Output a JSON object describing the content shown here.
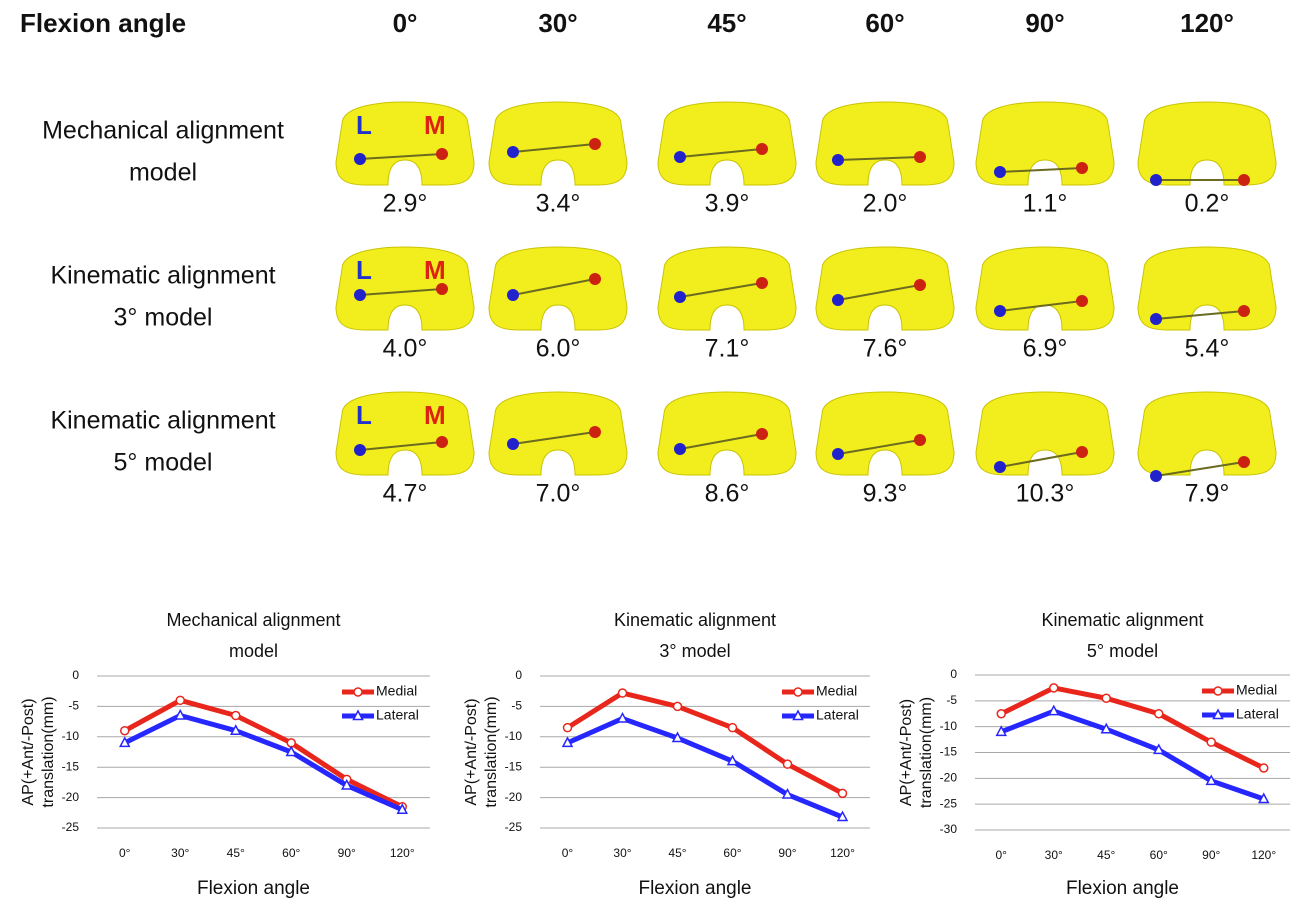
{
  "grid": {
    "header": "Flexion angle",
    "columns": [
      "0°",
      "30°",
      "45°",
      "60°",
      "90°",
      "120°"
    ],
    "lateral_label": "L",
    "medial_label": "M",
    "rows": [
      {
        "label": [
          "Mechanical alignment",
          "model"
        ],
        "values": [
          "2.9°",
          "3.4°",
          "3.9°",
          "2.0°",
          "1.1°",
          "0.2°"
        ]
      },
      {
        "label": [
          "Kinematic alignment",
          "3° model"
        ],
        "values": [
          "4.0°",
          "6.0°",
          "7.1°",
          "7.6°",
          "6.9°",
          "5.4°"
        ]
      },
      {
        "label": [
          "Kinematic alignment",
          "5° model"
        ],
        "values": [
          "4.7°",
          "7.0°",
          "8.6°",
          "9.3°",
          "10.3°",
          "7.9°"
        ]
      }
    ]
  },
  "chart_data": [
    {
      "type": "line",
      "title": [
        "Mechanical alignment",
        "model"
      ],
      "xlabel": "Flexion angle",
      "ylabel": [
        "AP(+Ant/-Post)",
        "translation(mm)"
      ],
      "categories": [
        "0°",
        "30°",
        "45°",
        "60°",
        "90°",
        "120°"
      ],
      "series": [
        {
          "name": "Medial",
          "color": "#e8261b",
          "values": [
            -9,
            -4,
            -6.5,
            -11,
            -17,
            -21.5
          ]
        },
        {
          "name": "Lateral",
          "color": "#2626ff",
          "values": [
            -11,
            -6.5,
            -9,
            -12.5,
            -18,
            -22
          ]
        }
      ],
      "ylim": [
        -25,
        0
      ],
      "yticks": [
        0,
        -5,
        -10,
        -15,
        -20,
        -25
      ],
      "grid": true,
      "legend": "top-right"
    },
    {
      "type": "line",
      "title": [
        "Kinematic alignment",
        "3° model"
      ],
      "xlabel": "Flexion angle",
      "ylabel": [
        "AP(+Ant/-Post)",
        "translation(mm)"
      ],
      "categories": [
        "0°",
        "30°",
        "45°",
        "60°",
        "90°",
        "120°"
      ],
      "series": [
        {
          "name": "Medial",
          "color": "#e8261b",
          "values": [
            -8.5,
            -2.8,
            -5,
            -8.5,
            -14.5,
            -19.3
          ]
        },
        {
          "name": "Lateral",
          "color": "#2626ff",
          "values": [
            -11,
            -7,
            -10.2,
            -14,
            -19.5,
            -23.2
          ]
        }
      ],
      "ylim": [
        -25,
        0
      ],
      "yticks": [
        0,
        -5,
        -10,
        -15,
        -20,
        -25
      ],
      "grid": true,
      "legend": "top-right"
    },
    {
      "type": "line",
      "title": [
        "Kinematic alignment",
        "5° model"
      ],
      "xlabel": "Flexion angle",
      "ylabel": [
        "AP(+Ant/-Post)",
        "translation(mm)"
      ],
      "categories": [
        "0°",
        "30°",
        "45°",
        "60°",
        "90°",
        "120°"
      ],
      "series": [
        {
          "name": "Medial",
          "color": "#e8261b",
          "values": [
            -7.5,
            -2.5,
            -4.5,
            -7.5,
            -13,
            -18
          ]
        },
        {
          "name": "Lateral",
          "color": "#2626ff",
          "values": [
            -11,
            -7,
            -10.5,
            -14.5,
            -20.5,
            -24
          ]
        }
      ],
      "ylim": [
        -30,
        0
      ],
      "yticks": [
        0,
        -5,
        -10,
        -15,
        -20,
        -25,
        -30
      ],
      "grid": true,
      "legend": "top-right"
    }
  ]
}
